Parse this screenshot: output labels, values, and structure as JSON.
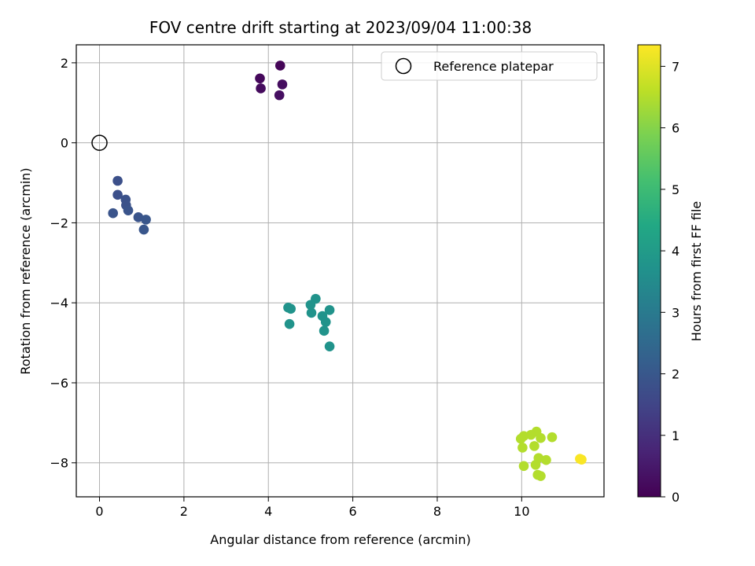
{
  "chart_data": {
    "type": "scatter",
    "title": "FOV centre drift starting at 2023/09/04 11:00:38",
    "xlabel": "Angular distance from reference (arcmin)",
    "ylabel": "Rotation from reference (arcmin)",
    "xlim": [
      -0.55,
      11.95
    ],
    "ylim": [
      -8.85,
      2.45
    ],
    "xticks": [
      0,
      2,
      4,
      6,
      8,
      10
    ],
    "yticks": [
      -8,
      -6,
      -4,
      -2,
      0,
      2
    ],
    "xtick_labels": [
      "0",
      "2",
      "4",
      "6",
      "8",
      "10"
    ],
    "ytick_labels": [
      "−8",
      "−6",
      "−4",
      "−2",
      "0",
      "2"
    ],
    "grid": true,
    "legend": {
      "placement": "top-right",
      "entries": [
        {
          "label": "Reference platepar",
          "marker": "open-circle"
        }
      ]
    },
    "reference_point": {
      "x": 0,
      "y": 0
    },
    "colorbar": {
      "label": "Hours from first FF file",
      "range": [
        0,
        7.35
      ],
      "ticks": [
        0,
        1,
        2,
        3,
        4,
        5,
        6,
        7
      ],
      "tick_labels": [
        "0",
        "1",
        "2",
        "3",
        "4",
        "5",
        "6",
        "7"
      ],
      "colormap": "viridis"
    },
    "points": [
      {
        "x": 4.28,
        "y": 1.93,
        "hours": 0.1
      },
      {
        "x": 3.8,
        "y": 1.61,
        "hours": 0.15
      },
      {
        "x": 3.82,
        "y": 1.36,
        "hours": 0.2
      },
      {
        "x": 4.33,
        "y": 1.46,
        "hours": 0.25
      },
      {
        "x": 4.26,
        "y": 1.19,
        "hours": 0.3
      },
      {
        "x": 0.43,
        "y": -0.95,
        "hours": 1.8
      },
      {
        "x": 0.43,
        "y": -1.3,
        "hours": 1.8
      },
      {
        "x": 0.62,
        "y": -1.42,
        "hours": 1.85
      },
      {
        "x": 0.63,
        "y": -1.56,
        "hours": 1.85
      },
      {
        "x": 0.68,
        "y": -1.69,
        "hours": 1.9
      },
      {
        "x": 0.32,
        "y": -1.76,
        "hours": 1.9
      },
      {
        "x": 0.92,
        "y": -1.86,
        "hours": 1.9
      },
      {
        "x": 1.1,
        "y": -1.92,
        "hours": 1.95
      },
      {
        "x": 1.05,
        "y": -2.17,
        "hours": 1.95
      },
      {
        "x": 4.47,
        "y": -4.12,
        "hours": 3.75
      },
      {
        "x": 4.53,
        "y": -4.15,
        "hours": 3.75
      },
      {
        "x": 4.5,
        "y": -4.53,
        "hours": 3.75
      },
      {
        "x": 5.12,
        "y": -3.9,
        "hours": 3.75
      },
      {
        "x": 5.0,
        "y": -4.05,
        "hours": 3.75
      },
      {
        "x": 5.02,
        "y": -4.25,
        "hours": 3.75
      },
      {
        "x": 5.45,
        "y": -4.18,
        "hours": 3.75
      },
      {
        "x": 5.28,
        "y": -4.33,
        "hours": 3.75
      },
      {
        "x": 5.36,
        "y": -4.48,
        "hours": 3.75
      },
      {
        "x": 5.32,
        "y": -4.7,
        "hours": 3.75
      },
      {
        "x": 5.45,
        "y": -5.09,
        "hours": 3.75
      },
      {
        "x": 10.35,
        "y": -7.22,
        "hours": 6.5
      },
      {
        "x": 10.22,
        "y": -7.3,
        "hours": 6.5
      },
      {
        "x": 10.05,
        "y": -7.33,
        "hours": 6.5
      },
      {
        "x": 9.98,
        "y": -7.4,
        "hours": 6.5
      },
      {
        "x": 10.45,
        "y": -7.38,
        "hours": 6.5
      },
      {
        "x": 10.72,
        "y": -7.36,
        "hours": 6.5
      },
      {
        "x": 10.3,
        "y": -7.58,
        "hours": 6.5
      },
      {
        "x": 10.02,
        "y": -7.62,
        "hours": 6.5
      },
      {
        "x": 10.4,
        "y": -7.88,
        "hours": 6.5
      },
      {
        "x": 10.58,
        "y": -7.93,
        "hours": 6.5
      },
      {
        "x": 10.33,
        "y": -8.05,
        "hours": 6.5
      },
      {
        "x": 10.05,
        "y": -8.08,
        "hours": 6.5
      },
      {
        "x": 10.38,
        "y": -8.3,
        "hours": 6.5
      },
      {
        "x": 10.45,
        "y": -8.33,
        "hours": 6.5
      },
      {
        "x": 11.38,
        "y": -7.9,
        "hours": 7.3
      },
      {
        "x": 11.42,
        "y": -7.92,
        "hours": 7.3
      }
    ]
  }
}
